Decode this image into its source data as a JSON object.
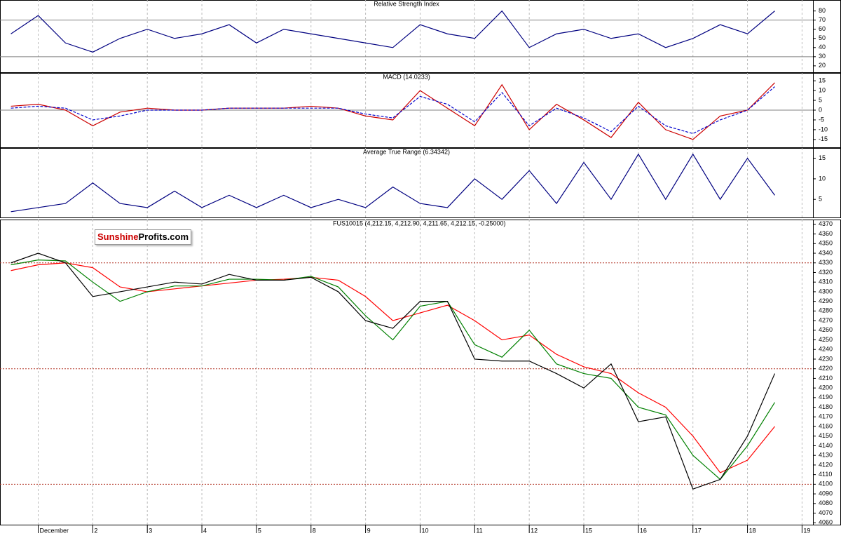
{
  "logo": {
    "brand": "Sunshine",
    "rest": "Profits.com"
  },
  "chart_data": [
    {
      "type": "line",
      "title": "Relative Strength Index",
      "xlim": [
        -0.7,
        14.2
      ],
      "ylim": [
        13,
        92
      ],
      "yticks": [
        20,
        30,
        40,
        50,
        60,
        70,
        80
      ],
      "levels": [
        30,
        70
      ],
      "level_color": "#808080",
      "x": [
        -0.5,
        0,
        0.5,
        1,
        1.5,
        2,
        2.5,
        3,
        3.5,
        4,
        4.5,
        5,
        5.5,
        6,
        6.5,
        7,
        7.5,
        8,
        8.5,
        9,
        9.5,
        10,
        10.5,
        11,
        11.5,
        12,
        12.5,
        13,
        13.5
      ],
      "series": [
        {
          "color": "#000080",
          "values": [
            55,
            75,
            45,
            35,
            50,
            60,
            50,
            55,
            65,
            45,
            60,
            55,
            50,
            45,
            40,
            65,
            55,
            50,
            80,
            40,
            55,
            60,
            50,
            55,
            40,
            50,
            65,
            55,
            80
          ]
        }
      ]
    },
    {
      "type": "line",
      "title": "MACD (14.0233)",
      "xlim": [
        -0.7,
        14.2
      ],
      "ylim": [
        -19,
        19
      ],
      "yticks": [
        -15,
        -10,
        -5,
        0,
        5,
        10,
        15
      ],
      "levels": [
        0
      ],
      "level_color": "#808080",
      "x": [
        -0.5,
        0,
        0.5,
        1,
        1.5,
        2,
        2.5,
        3,
        3.5,
        4,
        4.5,
        5,
        5.5,
        6,
        6.5,
        7,
        7.5,
        8,
        8.5,
        9,
        9.5,
        10,
        10.5,
        11,
        11.5,
        12,
        12.5,
        13,
        13.5
      ],
      "series": [
        {
          "color": "#cc0000",
          "values": [
            2,
            3,
            0,
            -8,
            -1,
            1,
            0,
            0,
            1,
            1,
            1,
            2,
            1,
            -3,
            -5,
            10,
            1,
            -8,
            13,
            -10,
            3,
            -5,
            -14,
            4,
            -10,
            -15,
            -3,
            0,
            14
          ]
        },
        {
          "color": "#0000cc",
          "dashed": true,
          "values": [
            1,
            2,
            1,
            -5,
            -3,
            0,
            0,
            0,
            1,
            1,
            1,
            1,
            1,
            -2,
            -4,
            7,
            3,
            -6,
            9,
            -8,
            1,
            -4,
            -11,
            2,
            -8,
            -12,
            -5,
            0,
            12
          ]
        }
      ]
    },
    {
      "type": "line",
      "title": "Average True Range (6.34342)",
      "xlim": [
        -0.7,
        14.2
      ],
      "ylim": [
        0.6,
        17.5
      ],
      "yticks": [
        5,
        10,
        15
      ],
      "x": [
        -0.5,
        0,
        0.5,
        1,
        1.5,
        2,
        2.5,
        3,
        3.5,
        4,
        4.5,
        5,
        5.5,
        6,
        6.5,
        7,
        7.5,
        8,
        8.5,
        9,
        9.5,
        10,
        10.5,
        11,
        11.5,
        12,
        12.5,
        13,
        13.5
      ],
      "series": [
        {
          "color": "#000080",
          "values": [
            2,
            3,
            4,
            9,
            4,
            3,
            7,
            3,
            6,
            3,
            6,
            3,
            5,
            3,
            8,
            4,
            3,
            10,
            5,
            12,
            4,
            14,
            5,
            16,
            5,
            16,
            5,
            15,
            6
          ]
        }
      ]
    },
    {
      "type": "line",
      "title": "FUS10015 (4,212.15, 4,212.90, 4,211.65, 4,212.15, -0.25000)",
      "xlim": [
        -0.7,
        14.2
      ],
      "ylim": [
        4058,
        4375
      ],
      "yticks": [
        4060,
        4070,
        4080,
        4090,
        4100,
        4110,
        4120,
        4130,
        4140,
        4150,
        4160,
        4170,
        4180,
        4190,
        4200,
        4210,
        4220,
        4230,
        4240,
        4250,
        4260,
        4270,
        4280,
        4290,
        4300,
        4310,
        4320,
        4330,
        4340,
        4350,
        4360,
        4370
      ],
      "levels": [
        4330,
        4220,
        4100
      ],
      "level_color": "#b03020",
      "level_dotted": true,
      "xticks": [
        {
          "value": 0,
          "label": "December"
        },
        {
          "value": 1,
          "label": "2"
        },
        {
          "value": 2,
          "label": "3"
        },
        {
          "value": 3,
          "label": "4"
        },
        {
          "value": 4,
          "label": "5"
        },
        {
          "value": 5,
          "label": "8"
        },
        {
          "value": 6,
          "label": "9"
        },
        {
          "value": 7,
          "label": "10"
        },
        {
          "value": 8,
          "label": "11"
        },
        {
          "value": 9,
          "label": "12"
        },
        {
          "value": 10,
          "label": "15"
        },
        {
          "value": 11,
          "label": "16"
        },
        {
          "value": 12,
          "label": "17"
        },
        {
          "value": 13,
          "label": "18"
        },
        {
          "value": 14,
          "label": "19"
        }
      ],
      "x": [
        -0.5,
        0,
        0.5,
        1,
        1.5,
        2,
        2.5,
        3,
        3.5,
        4,
        4.5,
        5,
        5.5,
        6,
        6.5,
        7,
        7.5,
        8,
        8.5,
        9,
        9.5,
        10,
        10.5,
        11,
        11.5,
        12,
        12.5,
        13,
        13.5
      ],
      "series": [
        {
          "color": "#ff0000",
          "values": [
            4322,
            4328,
            4330,
            4325,
            4305,
            4300,
            4303,
            4306,
            4309,
            4312,
            4313,
            4315,
            4312,
            4295,
            4270,
            4278,
            4286,
            4270,
            4250,
            4255,
            4235,
            4222,
            4215,
            4195,
            4180,
            4150,
            4112,
            4125,
            4160
          ]
        },
        {
          "color": "#008000",
          "values": [
            4328,
            4333,
            4332,
            4310,
            4290,
            4300,
            4306,
            4306,
            4313,
            4313,
            4312,
            4316,
            4305,
            4275,
            4250,
            4285,
            4290,
            4245,
            4232,
            4260,
            4225,
            4215,
            4210,
            4180,
            4172,
            4130,
            4105,
            4140,
            4185
          ]
        },
        {
          "color": "#000000",
          "values": [
            4330,
            4340,
            4330,
            4295,
            4300,
            4305,
            4310,
            4308,
            4318,
            4312,
            4312,
            4315,
            4300,
            4270,
            4262,
            4290,
            4290,
            4230,
            4228,
            4228,
            4215,
            4200,
            4225,
            4165,
            4170,
            4095,
            4105,
            4150,
            4215
          ]
        }
      ]
    }
  ]
}
